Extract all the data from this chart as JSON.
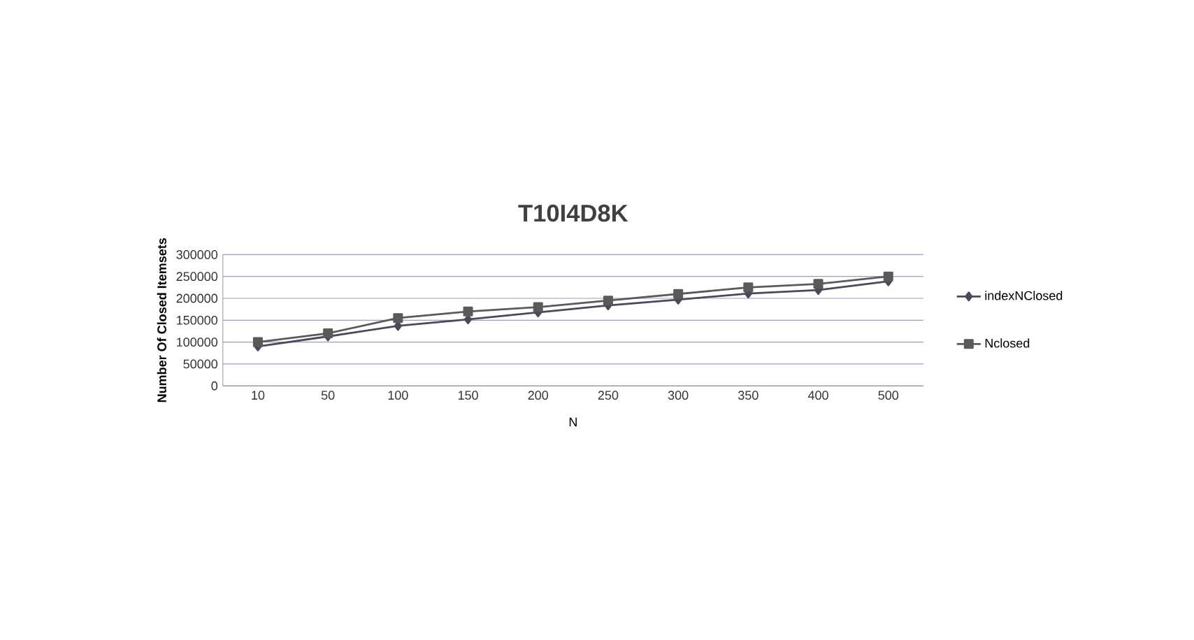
{
  "chart_data": {
    "type": "line",
    "title": "T10I4D8K",
    "xlabel": "N",
    "ylabel": "Number Of  Closed Itemsets",
    "categories": [
      "10",
      "50",
      "100",
      "150",
      "200",
      "250",
      "300",
      "350",
      "400",
      "500"
    ],
    "series": [
      {
        "name": "indexNClosed",
        "color": "#4a4a5a",
        "marker": "diamond",
        "values": [
          90000,
          113000,
          137000,
          152000,
          168000,
          184000,
          197000,
          211000,
          219000,
          239000
        ]
      },
      {
        "name": "Nclosed",
        "color": "#5a5a5a",
        "marker": "square",
        "values": [
          100000,
          120000,
          155000,
          170000,
          180000,
          195000,
          210000,
          225000,
          233000,
          250000
        ]
      }
    ],
    "ylim": [
      0,
      300000
    ],
    "yticks": [
      0,
      50000,
      100000,
      150000,
      200000,
      250000,
      300000
    ],
    "grid": "y",
    "legend": "right"
  }
}
